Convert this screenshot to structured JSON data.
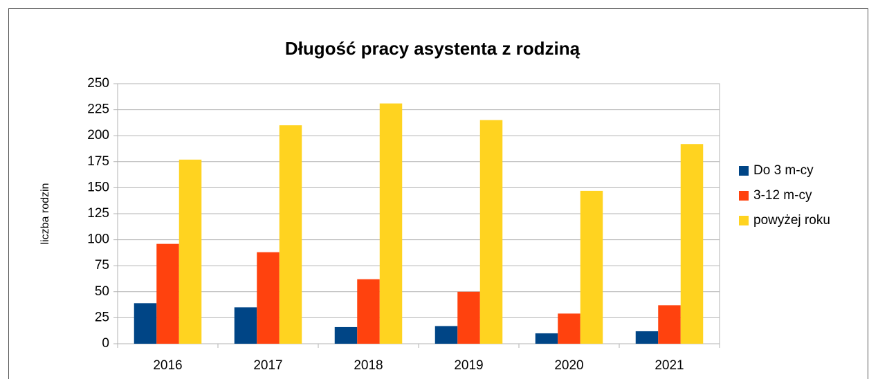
{
  "chart_data": {
    "type": "bar",
    "title": "Długość pracy asystenta z rodziną",
    "ylabel": "liczba rodzin",
    "categories": [
      "2016",
      "2017",
      "2018",
      "2019",
      "2020",
      "2021"
    ],
    "series": [
      {
        "name": "Do 3 m-cy",
        "color": "#004586",
        "values": [
          39,
          35,
          16,
          17,
          10,
          12
        ]
      },
      {
        "name": "3-12 m-cy",
        "color": "#ff420e",
        "values": [
          96,
          88,
          62,
          50,
          29,
          37
        ]
      },
      {
        "name": "powyżej roku",
        "color": "#ffd320",
        "values": [
          177,
          210,
          231,
          215,
          147,
          192
        ]
      }
    ],
    "ylim": [
      0,
      250
    ],
    "yticks": [
      0,
      25,
      50,
      75,
      100,
      125,
      150,
      175,
      200,
      225,
      250
    ],
    "grid": true,
    "legend": "right"
  }
}
